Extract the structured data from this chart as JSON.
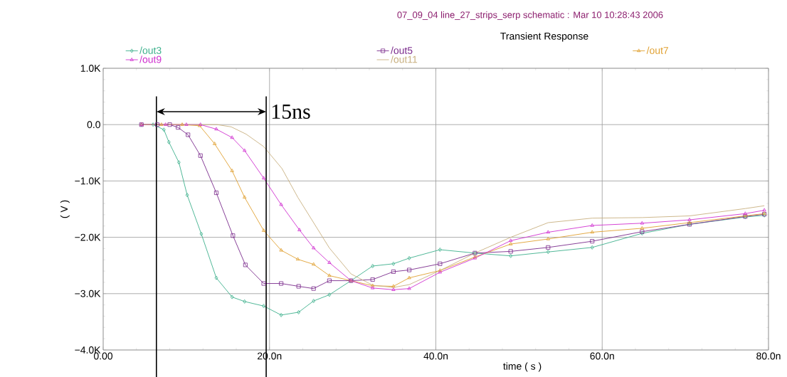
{
  "chart_data": {
    "type": "line",
    "subtitle": "07_09_04 line_27_strips_serp schematic : Mar 10 10:28:43 2006",
    "title": "Transient Response",
    "xlabel": "time ( s )",
    "ylabel": "( V )",
    "xlim": [
      0,
      80
    ],
    "ylim": [
      -4,
      1
    ],
    "xticks": [
      {
        "value": 0,
        "label": "0.00"
      },
      {
        "value": 20,
        "label": "20.0n"
      },
      {
        "value": 40,
        "label": "40.0n"
      },
      {
        "value": 60,
        "label": "60.0n"
      },
      {
        "value": 80,
        "label": "80.0n"
      }
    ],
    "yticks": [
      {
        "value": -4,
        "label": "−4.0K"
      },
      {
        "value": -3,
        "label": "−3.0K"
      },
      {
        "value": -2,
        "label": "−2.0K"
      },
      {
        "value": -1,
        "label": "−1.0K"
      },
      {
        "value": 0,
        "label": "0.0"
      },
      {
        "value": 1,
        "label": "1.0K"
      }
    ],
    "grid": true,
    "legend": "top",
    "series": [
      {
        "name": "/out3",
        "color": "#3cb08c",
        "marker": "diamond",
        "x": [
          4.6,
          6.0,
          7.3,
          7.9,
          9.1,
          10.1,
          11.8,
          13.6,
          15.5,
          17.0,
          19.3,
          21.4,
          23.5,
          25.3,
          27.2,
          29.8,
          32.4,
          34.9,
          36.8,
          40.5,
          44.7,
          49.0,
          53.5,
          58.8,
          64.8,
          70.5,
          77.2,
          79.5
        ],
        "values": [
          0,
          0,
          -0.09,
          -0.31,
          -0.67,
          -1.25,
          -1.94,
          -2.72,
          -3.06,
          -3.14,
          -3.22,
          -3.38,
          -3.33,
          -3.13,
          -3.02,
          -2.77,
          -2.51,
          -2.47,
          -2.37,
          -2.22,
          -2.28,
          -2.33,
          -2.26,
          -2.18,
          -1.93,
          -1.77,
          -1.64,
          -1.61
        ]
      },
      {
        "name": "/out5",
        "color": "#7a2a8c",
        "marker": "square",
        "x": [
          4.6,
          6.5,
          8.0,
          9.0,
          10.2,
          11.7,
          13.6,
          15.6,
          17.1,
          19.3,
          21.4,
          23.5,
          25.3,
          27.2,
          29.8,
          32.4,
          34.9,
          36.8,
          40.5,
          44.7,
          49.0,
          53.5,
          58.8,
          64.8,
          70.5,
          77.2,
          79.5
        ],
        "values": [
          0,
          0,
          0,
          -0.05,
          -0.18,
          -0.55,
          -1.21,
          -1.97,
          -2.49,
          -2.82,
          -2.82,
          -2.87,
          -2.91,
          -2.77,
          -2.77,
          -2.75,
          -2.61,
          -2.58,
          -2.47,
          -2.28,
          -2.25,
          -2.18,
          -2.07,
          -1.9,
          -1.77,
          -1.63,
          -1.59
        ]
      },
      {
        "name": "/out7",
        "color": "#e0a030",
        "marker": "triangle",
        "x": [
          4.6,
          7.0,
          9.5,
          11.6,
          13.4,
          15.5,
          17.0,
          19.3,
          21.4,
          23.4,
          25.3,
          27.2,
          29.8,
          32.4,
          34.9,
          36.8,
          40.5,
          44.7,
          49.0,
          53.5,
          58.8,
          64.8,
          70.5,
          77.2,
          79.5
        ],
        "values": [
          0,
          0,
          0,
          -0.02,
          -0.34,
          -0.82,
          -1.29,
          -1.88,
          -2.23,
          -2.39,
          -2.48,
          -2.68,
          -2.77,
          -2.86,
          -2.87,
          -2.72,
          -2.59,
          -2.35,
          -2.12,
          -2.03,
          -1.91,
          -1.84,
          -1.74,
          -1.62,
          -1.58
        ]
      },
      {
        "name": "/out9",
        "color": "#d030d0",
        "marker": "triangle",
        "x": [
          4.6,
          7.5,
          10.0,
          11.7,
          13.6,
          15.5,
          17.0,
          19.3,
          21.4,
          23.6,
          25.3,
          27.2,
          29.8,
          32.4,
          34.9,
          36.8,
          40.5,
          44.7,
          49.0,
          53.5,
          58.8,
          64.8,
          70.5,
          77.2,
          79.5
        ],
        "values": [
          0,
          0,
          0,
          0,
          -0.08,
          -0.23,
          -0.46,
          -0.95,
          -1.42,
          -1.87,
          -2.19,
          -2.45,
          -2.77,
          -2.9,
          -2.93,
          -2.91,
          -2.62,
          -2.37,
          -2.06,
          -1.91,
          -1.79,
          -1.75,
          -1.69,
          -1.58,
          -1.52
        ]
      },
      {
        "name": "/out11",
        "color": "#c8b080",
        "marker": "none",
        "x": [
          4.6,
          8.0,
          11.0,
          13.7,
          15.4,
          17.2,
          19.3,
          21.5,
          23.4,
          25.3,
          27.2,
          29.8,
          32.4,
          34.9,
          36.8,
          40.5,
          44.7,
          49.0,
          53.5,
          58.8,
          64.8,
          70.5,
          77.2,
          79.5
        ],
        "values": [
          0,
          0,
          0,
          0,
          -0.04,
          -0.17,
          -0.39,
          -0.78,
          -1.29,
          -1.74,
          -2.19,
          -2.65,
          -2.85,
          -2.89,
          -2.84,
          -2.59,
          -2.28,
          -2.0,
          -1.74,
          -1.66,
          -1.65,
          -1.62,
          -1.49,
          -1.44
        ]
      }
    ],
    "ref_lines": [
      {
        "axis": "x",
        "value": 6.4,
        "color": "#000000"
      },
      {
        "axis": "x",
        "value": 19.6,
        "color": "#000000"
      }
    ],
    "annotations": [
      {
        "text": "15ns",
        "x": 19.6,
        "y": 0.23
      }
    ]
  }
}
